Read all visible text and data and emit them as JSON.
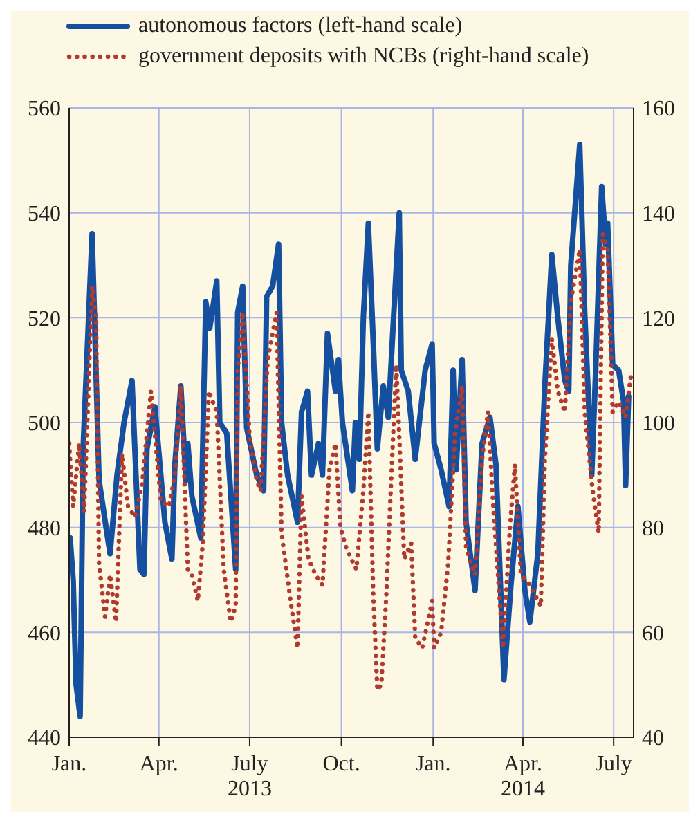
{
  "chart_data": {
    "type": "line",
    "xlim": [
      "2013-01-01",
      "2014-07-21"
    ],
    "xticks": [
      {
        "value": "2013-01-01",
        "label": "Jan."
      },
      {
        "value": "2013-04-01",
        "label": "Apr."
      },
      {
        "value": "2013-07-01",
        "label": "July\n2013"
      },
      {
        "value": "2013-10-01",
        "label": "Oct."
      },
      {
        "value": "2014-01-01",
        "label": "Jan."
      },
      {
        "value": "2014-04-01",
        "label": "Apr.\n2014"
      },
      {
        "value": "2014-07-01",
        "label": "July"
      }
    ],
    "ylim": [
      440,
      560
    ],
    "yticks": [
      440,
      460,
      480,
      500,
      520,
      540,
      560
    ],
    "y2lim": [
      40,
      160
    ],
    "y2ticks": [
      40,
      60,
      80,
      100,
      120,
      140,
      160
    ],
    "grid": true,
    "legend": "top left",
    "marker": "none",
    "series": [
      {
        "name": "autonomous factors (left-hand scale)",
        "color": "#1550a0",
        "line_style": "solid",
        "x": [
          "2013-01-02",
          "2013-01-05",
          "2013-01-08",
          "2013-01-12",
          "2013-01-15",
          "2013-01-24",
          "2013-01-31",
          "2013-02-07",
          "2013-02-11",
          "2013-02-18",
          "2013-02-25",
          "2013-03-05",
          "2013-03-13",
          "2013-03-17",
          "2013-03-20",
          "2013-03-28",
          "2013-04-07",
          "2013-04-14",
          "2013-04-17",
          "2013-04-23",
          "2013-04-28",
          "2013-04-30",
          "2013-05-04",
          "2013-05-13",
          "2013-05-18",
          "2013-05-22",
          "2013-05-29",
          "2013-06-01",
          "2013-06-08",
          "2013-06-17",
          "2013-06-19",
          "2013-06-24",
          "2013-06-28",
          "2013-07-08",
          "2013-07-15",
          "2013-07-18",
          "2013-07-24",
          "2013-07-30",
          "2013-08-02",
          "2013-08-08",
          "2013-08-18",
          "2013-08-22",
          "2013-08-28",
          "2013-09-01",
          "2013-09-08",
          "2013-09-12",
          "2013-09-17",
          "2013-09-25",
          "2013-09-28",
          "2013-10-02",
          "2013-10-12",
          "2013-10-15",
          "2013-10-19",
          "2013-10-23",
          "2013-10-28",
          "2013-11-02",
          "2013-11-06",
          "2013-11-12",
          "2013-11-17",
          "2013-11-22",
          "2013-11-28",
          "2013-11-30",
          "2013-12-07",
          "2013-12-14",
          "2013-12-24",
          "2013-12-31",
          "2014-01-02",
          "2014-01-09",
          "2014-01-17",
          "2014-01-21",
          "2014-01-24",
          "2014-01-30",
          "2014-02-03",
          "2014-02-12",
          "2014-02-19",
          "2014-02-27",
          "2014-03-05",
          "2014-03-13",
          "2014-03-20",
          "2014-03-27",
          "2014-04-03",
          "2014-04-08",
          "2014-04-16",
          "2014-04-23",
          "2014-04-30",
          "2014-05-06",
          "2014-05-13",
          "2014-05-17",
          "2014-05-19",
          "2014-05-28",
          "2014-06-02",
          "2014-06-09",
          "2014-06-13",
          "2014-06-19",
          "2014-06-23",
          "2014-06-25",
          "2014-06-30",
          "2014-07-06",
          "2014-07-11",
          "2014-07-13",
          "2014-07-16"
        ],
        "values": [
          478,
          470,
          450,
          444,
          495,
          536,
          489,
          480,
          475,
          490,
          500,
          508,
          472,
          471,
          495,
          503,
          481,
          474,
          492,
          507,
          489,
          496,
          486,
          478,
          523,
          518,
          527,
          500,
          498,
          472,
          521,
          526,
          499,
          490,
          487,
          524,
          526,
          534,
          500,
          490,
          481,
          502,
          506,
          490,
          496,
          490,
          517,
          506,
          512,
          500,
          487,
          500,
          493,
          520,
          538,
          515,
          495,
          507,
          501,
          519,
          540,
          510,
          506,
          493,
          510,
          515,
          496,
          491,
          484,
          510,
          491,
          512,
          481,
          468,
          496,
          501,
          492,
          451,
          469,
          484,
          468,
          462,
          475,
          507,
          532,
          520,
          508,
          506,
          530,
          553,
          521,
          490,
          510,
          545,
          534,
          538,
          511,
          510,
          504,
          488,
          505
        ]
      },
      {
        "name": "government deposits with NCBs (right-hand scale)",
        "color": "#b03a2e",
        "line_style": "dotted",
        "axis": "y2",
        "x": [
          "2013-01-01",
          "2013-01-05",
          "2013-01-11",
          "2013-01-16",
          "2013-01-24",
          "2013-01-28",
          "2013-01-31",
          "2013-02-06",
          "2013-02-11",
          "2013-02-17",
          "2013-02-23",
          "2013-03-01",
          "2013-03-08",
          "2013-03-15",
          "2013-03-24",
          "2013-04-03",
          "2013-04-11",
          "2013-04-17",
          "2013-04-23",
          "2013-04-30",
          "2013-05-04",
          "2013-05-10",
          "2013-05-15",
          "2013-05-21",
          "2013-05-29",
          "2013-06-05",
          "2013-06-12",
          "2013-06-17",
          "2013-06-19",
          "2013-06-24",
          "2013-07-01",
          "2013-07-08",
          "2013-07-12",
          "2013-07-19",
          "2013-07-28",
          "2013-08-02",
          "2013-08-11",
          "2013-08-18",
          "2013-08-22",
          "2013-08-29",
          "2013-09-05",
          "2013-09-12",
          "2013-09-19",
          "2013-09-25",
          "2013-09-30",
          "2013-10-06",
          "2013-10-16",
          "2013-10-23",
          "2013-10-28",
          "2013-11-02",
          "2013-11-06",
          "2013-11-10",
          "2013-11-15",
          "2013-11-19",
          "2013-11-25",
          "2013-11-29",
          "2013-12-03",
          "2013-12-10",
          "2013-12-14",
          "2013-12-21",
          "2013-12-31",
          "2014-01-02",
          "2014-01-09",
          "2014-01-16",
          "2014-01-23",
          "2014-01-30",
          "2014-02-03",
          "2014-02-12",
          "2014-02-19",
          "2014-02-25",
          "2014-03-02",
          "2014-03-12",
          "2014-03-19",
          "2014-03-24",
          "2014-03-30",
          "2014-04-08",
          "2014-04-19",
          "2014-04-23",
          "2014-04-30",
          "2014-05-06",
          "2014-05-13",
          "2014-05-19",
          "2014-05-28",
          "2014-06-02",
          "2014-06-10",
          "2014-06-16",
          "2014-06-20",
          "2014-06-25",
          "2014-06-30",
          "2014-07-06",
          "2014-07-13",
          "2014-07-19"
        ],
        "values": [
          96,
          84,
          96,
          83,
          126,
          120,
          73,
          63,
          71,
          62,
          94,
          84,
          82,
          88,
          106,
          85,
          84,
          90,
          107,
          72,
          71,
          66,
          77,
          106,
          102,
          72,
          62,
          65,
          110,
          121,
          97,
          89,
          87,
          112,
          121,
          79,
          66,
          57,
          86,
          74,
          71,
          69,
          91,
          96,
          80,
          76,
          72,
          87,
          102,
          67,
          49,
          50,
          67,
          85,
          111,
          93,
          74,
          77,
          59,
          57,
          66,
          57,
          60,
          73,
          98,
          107,
          76,
          71,
          93,
          102,
          85,
          57,
          80,
          92,
          71,
          69,
          65,
          93,
          116,
          106,
          102,
          123,
          133,
          102,
          87,
          79,
          136,
          133,
          102,
          104,
          101,
          110
        ]
      }
    ]
  }
}
